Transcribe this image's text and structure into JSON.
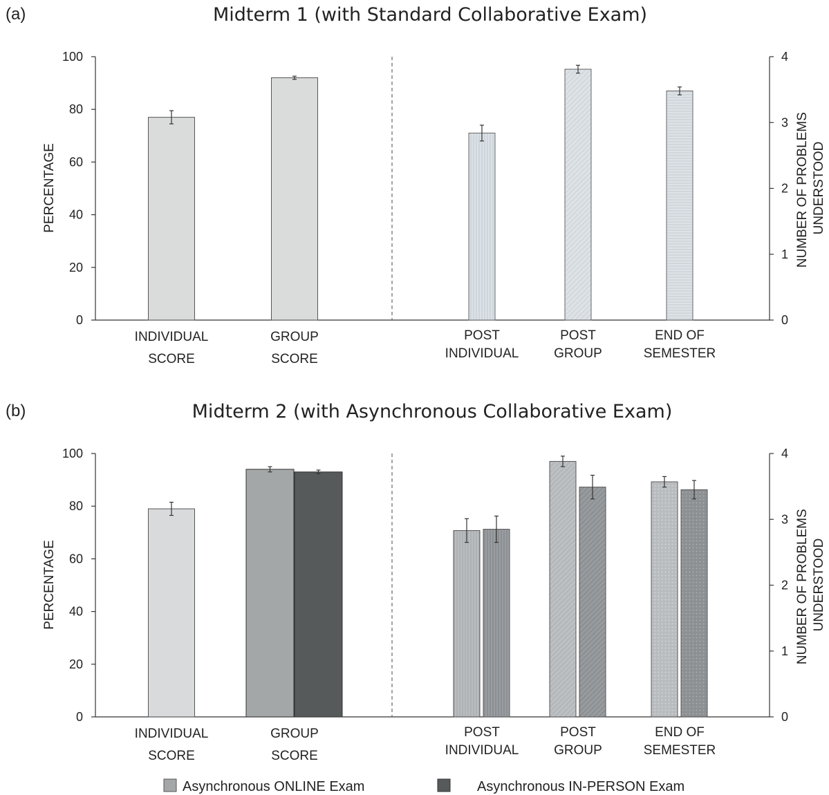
{
  "chart_data": [
    {
      "type": "bar",
      "panel_label": "(a)",
      "title": "Midterm 1 (with Standard Collaborative Exam)",
      "left_axis": {
        "label": "PERCENTAGE",
        "ylim": [
          0,
          100
        ],
        "ticks": [
          "0",
          "20",
          "40",
          "60",
          "80",
          "100"
        ],
        "categories": [
          [
            "INDIVIDUAL",
            "SCORE"
          ],
          [
            "GROUP",
            "SCORE"
          ]
        ],
        "values": [
          77,
          92
        ],
        "errors": [
          2.5,
          0.6
        ],
        "colors": [
          "#dadbdb",
          "#dadbdb"
        ]
      },
      "right_axis": {
        "label_lines": [
          "NUMBER OF PROBLEMS",
          "UNDERSTOOD"
        ],
        "ylim": [
          0,
          4
        ],
        "ticks": [
          "0",
          "1",
          "2",
          "3",
          "4"
        ],
        "categories": [
          [
            "POST",
            "INDIVIDUAL"
          ],
          [
            "POST",
            "GROUP"
          ],
          [
            "END OF",
            "SEMESTER"
          ]
        ],
        "values": [
          2.84,
          3.81,
          3.48
        ],
        "errors": [
          0.12,
          0.06,
          0.06
        ],
        "patterns": [
          "vertical",
          "diagonal",
          "horizontal"
        ]
      }
    },
    {
      "type": "bar",
      "panel_label": "(b)",
      "title": "Midterm 2 (with Asynchronous Collaborative Exam)",
      "left_axis": {
        "label": "PERCENTAGE",
        "ylim": [
          0,
          100
        ],
        "ticks": [
          "0",
          "20",
          "40",
          "60",
          "80",
          "100"
        ],
        "categories": [
          [
            "INDIVIDUAL",
            "SCORE"
          ],
          [
            "GROUP",
            "SCORE"
          ]
        ],
        "series": [
          {
            "values": [
              79,
              94
            ],
            "errors": [
              2.5,
              1.0
            ],
            "color": "#a4a7a8"
          },
          {
            "values": [
              null,
              93
            ],
            "errors": [
              null,
              0.7
            ],
            "color": "#565a5b"
          }
        ],
        "individual_color": "#d8dadb"
      },
      "right_axis": {
        "label_lines": [
          "NUMBER OF PROBLEMS",
          "UNDERSTOOD"
        ],
        "ylim": [
          0,
          4
        ],
        "ticks": [
          "0",
          "1",
          "2",
          "3",
          "4"
        ],
        "categories": [
          [
            "POST",
            "INDIVIDUAL"
          ],
          [
            "POST",
            "GROUP"
          ],
          [
            "END OF",
            "SEMESTER"
          ]
        ],
        "series": [
          {
            "values": [
              2.83,
              3.88,
              3.57
            ],
            "errors": [
              0.18,
              0.08,
              0.08
            ],
            "color": "#b4b7b9"
          },
          {
            "values": [
              2.85,
              3.49,
              3.45
            ],
            "errors": [
              0.2,
              0.18,
              0.14
            ],
            "color": "#8b8f91"
          }
        ]
      },
      "legend": {
        "placement": "bottom",
        "items": [
          {
            "label": "Asynchronous ONLINE Exam",
            "color": "#a4a7a8"
          },
          {
            "label": "Asynchronous IN-PERSON Exam",
            "color": "#565a5b"
          }
        ]
      }
    }
  ]
}
